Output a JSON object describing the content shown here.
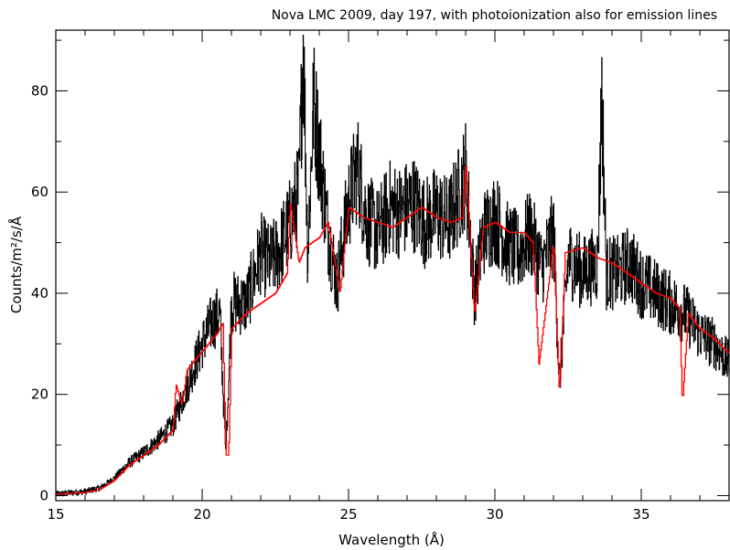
{
  "chart_data": {
    "type": "line",
    "title": "Nova LMC 2009, day 197, with photoionization also for emission lines",
    "xlabel": "Wavelength (Å)",
    "ylabel": "Counts/m²/s/Å",
    "xlim": [
      15,
      38
    ],
    "ylim": [
      -1,
      92
    ],
    "x_ticks": [
      15,
      20,
      25,
      30,
      35
    ],
    "y_ticks": [
      0,
      20,
      40,
      60,
      80
    ],
    "grid": false,
    "series": [
      {
        "color": "#000000",
        "style": "noisy histogram",
        "x": [
          15.0,
          16.0,
          16.5,
          17.0,
          17.5,
          18.0,
          18.5,
          19.0,
          19.5,
          20.0,
          20.3,
          20.6,
          20.8,
          21.0,
          21.5,
          22.0,
          22.3,
          22.6,
          23.0,
          23.3,
          23.45,
          23.6,
          23.8,
          24.0,
          24.3,
          24.6,
          25.0,
          25.3,
          25.6,
          26.0,
          26.4,
          26.8,
          27.2,
          27.6,
          28.0,
          28.4,
          28.8,
          29.0,
          29.3,
          29.6,
          30.0,
          30.4,
          30.8,
          31.2,
          31.6,
          32.0,
          32.2,
          32.5,
          33.0,
          33.5,
          33.65,
          33.8,
          34.2,
          34.6,
          35.0,
          35.5,
          36.0,
          36.5,
          37.0,
          37.5,
          38.0
        ],
        "values": [
          0.3,
          0.8,
          1.5,
          3.5,
          6.5,
          8.5,
          11.0,
          14.0,
          22.0,
          30.0,
          34.0,
          36.0,
          8.0,
          38.0,
          38.0,
          48.0,
          46.0,
          48.0,
          54.0,
          60.0,
          90.0,
          48.0,
          78.0,
          68.0,
          52.0,
          42.0,
          58.0,
          65.0,
          55.0,
          52.0,
          57.0,
          56.0,
          58.0,
          54.0,
          56.0,
          54.0,
          60.0,
          64.0,
          40.0,
          52.0,
          55.0,
          50.0,
          48.0,
          52.0,
          45.0,
          52.0,
          22.0,
          47.0,
          44.0,
          46.0,
          80.0,
          44.0,
          44.0,
          46.0,
          42.0,
          40.0,
          38.0,
          36.0,
          32.0,
          30.0,
          26.0
        ]
      },
      {
        "color": "#ff0000",
        "style": "model step line",
        "x": [
          15.0,
          16.0,
          16.5,
          17.0,
          17.5,
          18.0,
          18.5,
          19.0,
          19.1,
          19.3,
          19.5,
          20.0,
          20.5,
          20.7,
          20.8,
          20.9,
          21.0,
          21.5,
          22.0,
          22.5,
          22.9,
          23.0,
          23.3,
          23.5,
          24.0,
          24.3,
          24.7,
          25.0,
          25.5,
          26.0,
          26.5,
          27.0,
          27.5,
          28.0,
          28.5,
          28.9,
          29.0,
          29.3,
          29.6,
          30.0,
          30.5,
          31.0,
          31.3,
          31.5,
          32.0,
          32.2,
          32.4,
          33.0,
          33.5,
          34.0,
          34.5,
          35.0,
          35.5,
          36.0,
          36.3,
          36.4,
          36.6,
          37.0,
          37.5,
          38.0
        ],
        "values": [
          0.3,
          0.6,
          1.2,
          3.0,
          6.0,
          8.0,
          10.0,
          13.0,
          22.0,
          18.0,
          25.0,
          28.5,
          32.0,
          34.0,
          8.0,
          8.0,
          33.0,
          36.0,
          38.0,
          40.0,
          44.0,
          58.0,
          46.0,
          49.0,
          51.0,
          54.0,
          40.0,
          57.0,
          55.0,
          54.0,
          53.0,
          55.0,
          57.0,
          55.0,
          54.0,
          55.0,
          66.0,
          36.0,
          53.0,
          54.0,
          52.0,
          52.0,
          50.0,
          26.0,
          50.0,
          20.0,
          48.0,
          49.0,
          47.0,
          46.0,
          44.0,
          42.0,
          40.0,
          39.0,
          37.0,
          18.0,
          36.0,
          33.0,
          31.0,
          28.0
        ]
      }
    ]
  }
}
